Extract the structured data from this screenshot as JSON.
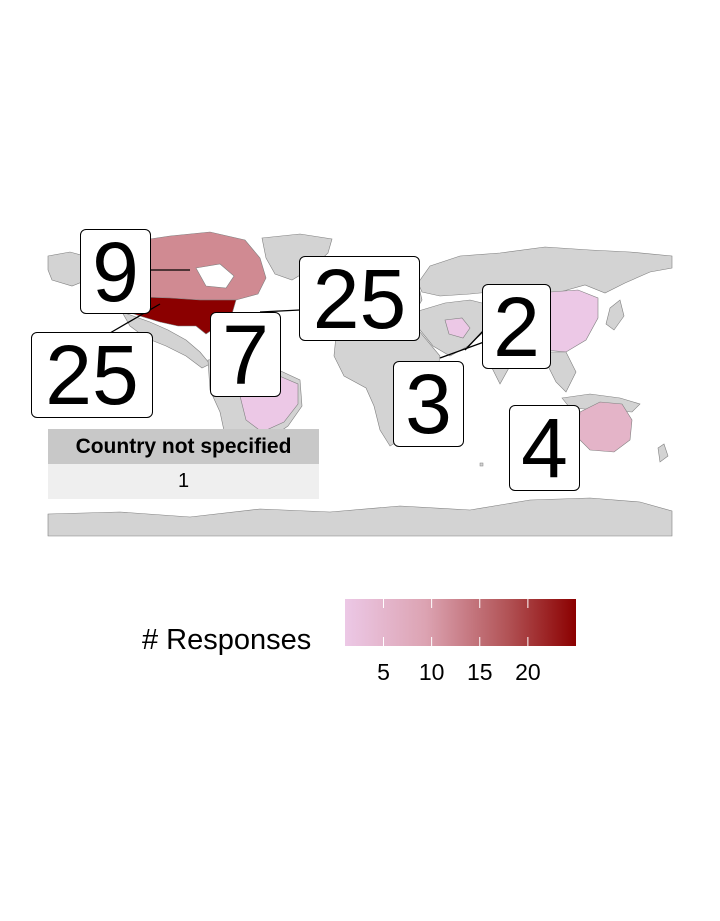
{
  "map": {
    "colors": {
      "ocean": "#ffffff",
      "no_data": "#d3d3d3",
      "country_border": "#808080",
      "low": "#ecc8e6",
      "high": "#8b0000"
    },
    "regions": [
      {
        "name": "United States",
        "responses": 25
      },
      {
        "name": "Canada",
        "responses": 9
      },
      {
        "name": "Europe",
        "responses": 25
      },
      {
        "name": "South America",
        "responses": 7
      },
      {
        "name": "Africa",
        "responses": 3
      },
      {
        "name": "Asia",
        "responses": 2
      },
      {
        "name": "Oceania",
        "responses": 4
      }
    ],
    "labels": {
      "canada": "9",
      "usa": "25",
      "south_america": "7",
      "europe": "25",
      "africa": "3",
      "asia": "2",
      "oceania": "4"
    }
  },
  "unspecified_table": {
    "header": "Country not specified",
    "value": "1"
  },
  "legend": {
    "title": "# Responses",
    "ticks": [
      "5",
      "10",
      "15",
      "20"
    ],
    "tick_values": [
      5,
      10,
      15,
      20
    ],
    "range": [
      1,
      25
    ]
  }
}
